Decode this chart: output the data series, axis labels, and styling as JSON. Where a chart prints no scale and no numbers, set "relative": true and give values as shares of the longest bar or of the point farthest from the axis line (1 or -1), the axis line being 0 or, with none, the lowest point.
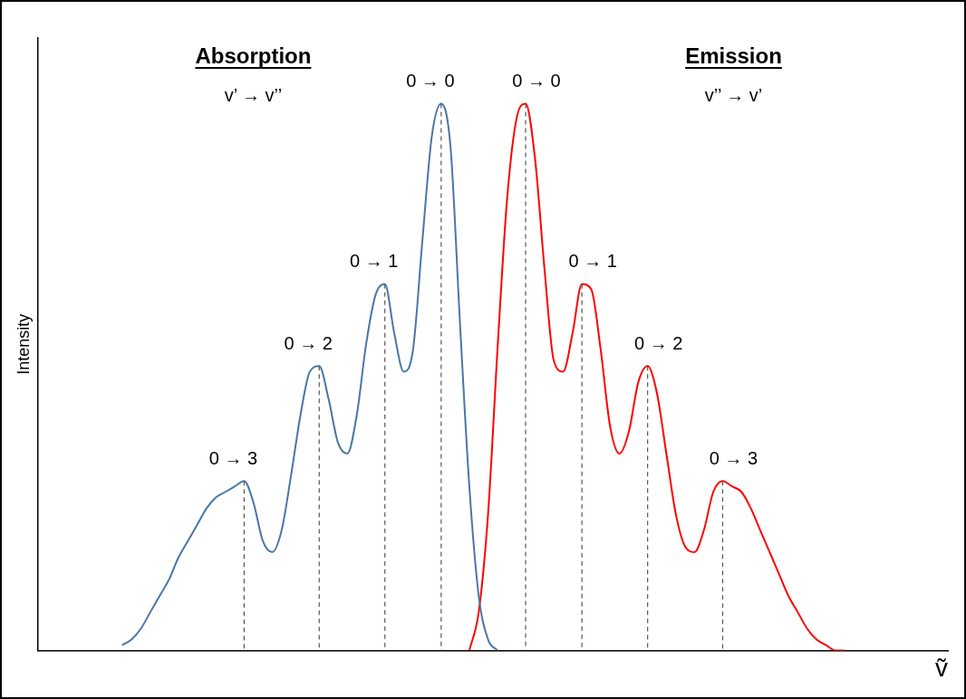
{
  "chart_data": {
    "type": "line",
    "relative": true,
    "xlabel": "ṽ",
    "ylabel": "Intensity",
    "tick_labels": false,
    "grid": false,
    "legend": false,
    "marker": "none",
    "line_style": "solid",
    "annotations": [
      "Absorption",
      "v’ → v’’",
      "0 → 3",
      "0 → 2",
      "0 → 1",
      "0 → 0",
      "Emission",
      "v’’ → v’",
      "0 → 0",
      "0 → 1",
      "0 → 2",
      "0 → 3"
    ],
    "categories": [
      null,
      null,
      null,
      null,
      null,
      null,
      null,
      null,
      null,
      null,
      null,
      null,
      null,
      null,
      null,
      null,
      null,
      null,
      null,
      null,
      null,
      null,
      null,
      null,
      null,
      null,
      null,
      null,
      null,
      null,
      null,
      null,
      null,
      null,
      null,
      null,
      null,
      null,
      null,
      null,
      null,
      null,
      null,
      null,
      null,
      null,
      null,
      null,
      null,
      null,
      null,
      null,
      null,
      null,
      null,
      null,
      null,
      null,
      null,
      null,
      null,
      null,
      null,
      null,
      null,
      null,
      null,
      null,
      null,
      null,
      null,
      null,
      null,
      null,
      null,
      null,
      null,
      null,
      null,
      null,
      null,
      null,
      null,
      null,
      null,
      null,
      null,
      null,
      null,
      null,
      null,
      null,
      null,
      null,
      null,
      null,
      null,
      null
    ],
    "series": [
      {
        "color": "#4a76a8",
        "values": [
          null,
          null,
          null,
          null,
          null,
          null,
          null,
          null,
          null,
          0.01,
          0.02,
          0.04,
          0.07,
          0.1,
          0.13,
          0.17,
          0.2,
          0.23,
          0.26,
          0.28,
          0.29,
          0.3,
          0.31,
          0.27,
          0.2,
          0.18,
          0.22,
          0.32,
          0.43,
          0.51,
          0.52,
          0.46,
          0.38,
          0.36,
          0.43,
          0.56,
          0.65,
          0.67,
          0.58,
          0.51,
          0.55,
          0.75,
          0.94,
          1.0,
          0.92,
          0.6,
          0.3,
          0.1,
          0.02,
          0.0,
          null,
          null,
          null,
          null,
          null,
          null,
          null,
          null,
          null,
          null,
          null,
          null,
          null,
          null,
          null,
          null,
          null,
          null,
          null,
          null,
          null,
          null,
          null,
          null,
          null,
          null,
          null,
          null,
          null,
          null,
          null,
          null,
          null,
          null,
          null,
          null,
          null,
          null,
          null,
          null,
          null,
          null,
          null,
          null,
          null,
          null,
          null,
          null
        ]
      },
      {
        "color": "#ff0000",
        "values": [
          null,
          null,
          null,
          null,
          null,
          null,
          null,
          null,
          null,
          null,
          null,
          null,
          null,
          null,
          null,
          null,
          null,
          null,
          null,
          null,
          null,
          null,
          null,
          null,
          null,
          null,
          null,
          null,
          null,
          null,
          null,
          null,
          null,
          null,
          null,
          null,
          null,
          null,
          null,
          null,
          null,
          null,
          null,
          null,
          null,
          null,
          0.0,
          0.07,
          0.25,
          0.55,
          0.82,
          0.97,
          1.0,
          0.9,
          0.7,
          0.53,
          0.51,
          0.58,
          0.67,
          0.66,
          0.55,
          0.41,
          0.36,
          0.4,
          0.49,
          0.52,
          0.47,
          0.36,
          0.25,
          0.19,
          0.18,
          0.22,
          0.29,
          0.31,
          0.3,
          0.29,
          0.26,
          0.22,
          0.18,
          0.14,
          0.1,
          0.07,
          0.04,
          0.02,
          0.01,
          0.0,
          0.0,
          null,
          null,
          null,
          null,
          null,
          null,
          null,
          null,
          null,
          null,
          null
        ]
      }
    ]
  }
}
